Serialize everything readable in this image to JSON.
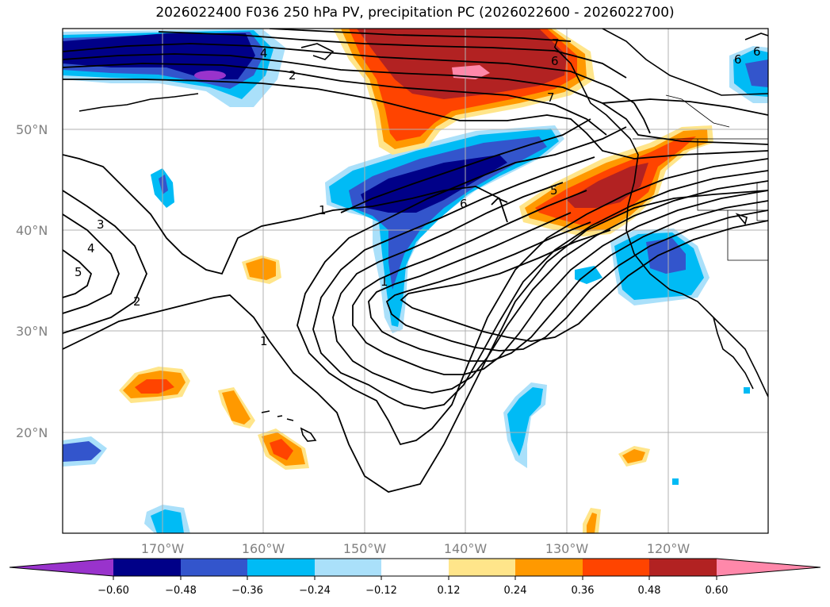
{
  "title": "2026022400 F036 250 hPa PV, precipitation PC (2026022600 - 2026022700)",
  "map": {
    "lat_labels": [
      "50°N",
      "40°N",
      "30°N",
      "20°N"
    ],
    "lon_labels": [
      "170°W",
      "160°W",
      "150°W",
      "140°W",
      "130°W",
      "120°W"
    ],
    "contour_labels": [
      "1",
      "1",
      "1",
      "2",
      "2",
      "3",
      "4",
      "5",
      "4",
      "6",
      "6",
      "7",
      "7",
      "5",
      "6",
      "6"
    ]
  },
  "colorbar": {
    "ticks": [
      "−0.60",
      "−0.48",
      "−0.36",
      "−0.24",
      "−0.12",
      "0.12",
      "0.24",
      "0.36",
      "0.48",
      "0.60"
    ],
    "colors": [
      "#9933cc",
      "#000088",
      "#3355cc",
      "#00bbf5",
      "#aae0fa",
      "#ffffff",
      "#ffe58a",
      "#ff9900",
      "#ff4400",
      "#b22222",
      "#ff88aa"
    ]
  }
}
